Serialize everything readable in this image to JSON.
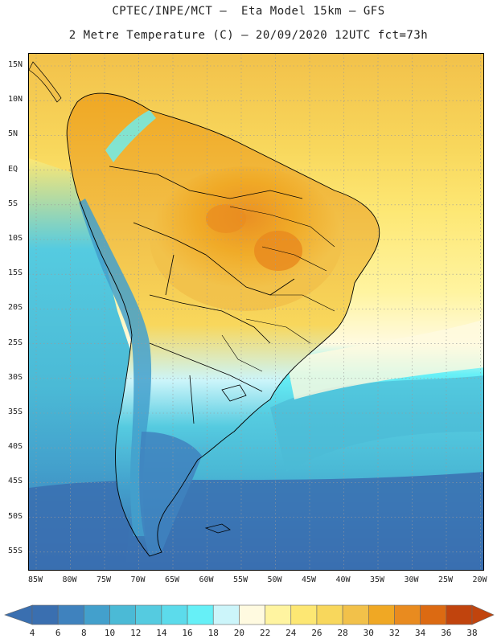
{
  "header": {
    "line1": "CPTEC/INPE/MCT –  Eta Model 15km – GFS",
    "line2": "2 Metre Temperature (C) – 20/09/2020 12UTC fct=73h"
  },
  "axes": {
    "lat_labels": [
      "15N",
      "10N",
      "5N",
      "EQ",
      "5S",
      "10S",
      "15S",
      "20S",
      "25S",
      "30S",
      "35S",
      "40S",
      "45S",
      "50S",
      "55S"
    ],
    "lon_labels": [
      "85W",
      "80W",
      "75W",
      "70W",
      "65W",
      "60W",
      "55W",
      "50W",
      "45W",
      "40W",
      "35W",
      "30W",
      "25W",
      "20W"
    ]
  },
  "colorbar": {
    "labels": [
      "4",
      "6",
      "8",
      "10",
      "12",
      "14",
      "16",
      "18",
      "20",
      "22",
      "24",
      "26",
      "28",
      "30",
      "32",
      "34",
      "36",
      "38"
    ],
    "colors": [
      "#3a6fb0",
      "#3f82be",
      "#43a0cc",
      "#4bbad6",
      "#55cbe0",
      "#5cdbeb",
      "#66f0f7",
      "#ccf5fa",
      "#fffae0",
      "#fff4a0",
      "#fde773",
      "#f8d75c",
      "#f2c14a",
      "#f0a824",
      "#e98b1f",
      "#dc6a12",
      "#c1440d"
    ],
    "low_arrow_color": "#3a6fb0",
    "high_arrow_color": "#c1440d"
  },
  "palette": {
    "frame": "#000000",
    "grid": "#9a9a9a",
    "border": "#000000"
  }
}
